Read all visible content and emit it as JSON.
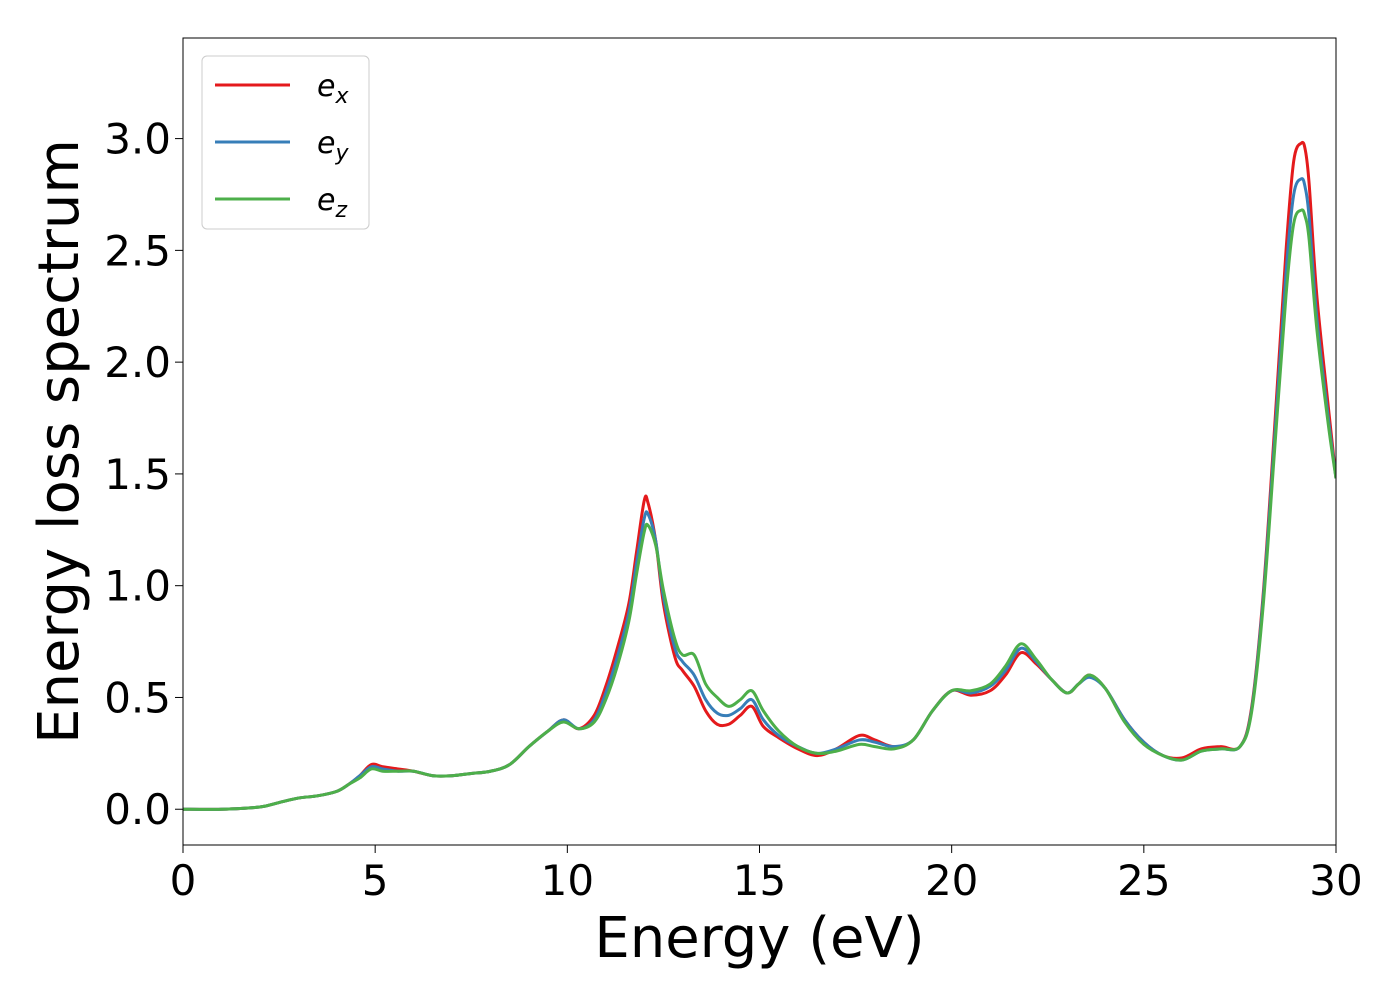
{
  "chart_data": {
    "type": "line",
    "title": "",
    "xlabel": "Energy (eV)",
    "ylabel": "Energy loss spectrum",
    "xlim": [
      0,
      30
    ],
    "ylim": [
      -0.16,
      3.45
    ],
    "xticks": [
      0,
      5,
      10,
      15,
      20,
      25,
      30
    ],
    "xtick_labels": [
      "0",
      "5",
      "10",
      "15",
      "20",
      "25",
      "30"
    ],
    "yticks": [
      0.0,
      0.5,
      1.0,
      1.5,
      2.0,
      2.5,
      3.0
    ],
    "ytick_labels": [
      "0.0",
      "0.5",
      "1.0",
      "1.5",
      "2.0",
      "2.5",
      "3.0"
    ],
    "grid": false,
    "legend_position": "upper-left",
    "series": [
      {
        "name": "e",
        "subscript": "x",
        "color": "#e41a1c",
        "x": [
          0,
          1,
          2,
          2.5,
          3,
          3.5,
          4,
          4.3,
          4.6,
          4.9,
          5.2,
          5.6,
          6.0,
          6.5,
          7,
          7.5,
          8,
          8.5,
          9,
          9.5,
          9.9,
          10.3,
          10.7,
          11,
          11.3,
          11.6,
          11.8,
          12.0,
          12.1,
          12.3,
          12.5,
          12.8,
          13.0,
          13.3,
          13.6,
          13.9,
          14.2,
          14.5,
          14.8,
          15.1,
          15.5,
          16.0,
          16.5,
          17.0,
          17.6,
          18.0,
          18.5,
          19.0,
          19.5,
          20.0,
          20.5,
          21.0,
          21.4,
          21.8,
          22.2,
          22.6,
          23.0,
          23.3,
          23.6,
          24.0,
          24.5,
          25.0,
          25.5,
          26.0,
          26.5,
          27.0,
          27.5,
          27.8,
          28.1,
          28.4,
          28.7,
          28.9,
          29.1,
          29.2,
          29.3,
          29.5,
          29.8,
          30.0
        ],
        "y": [
          0,
          0,
          0.01,
          0.03,
          0.05,
          0.06,
          0.08,
          0.11,
          0.15,
          0.2,
          0.19,
          0.18,
          0.17,
          0.15,
          0.15,
          0.16,
          0.17,
          0.2,
          0.28,
          0.35,
          0.4,
          0.36,
          0.42,
          0.55,
          0.72,
          0.92,
          1.15,
          1.38,
          1.37,
          1.2,
          0.92,
          0.68,
          0.62,
          0.55,
          0.44,
          0.38,
          0.38,
          0.42,
          0.46,
          0.37,
          0.32,
          0.27,
          0.24,
          0.27,
          0.33,
          0.31,
          0.28,
          0.31,
          0.44,
          0.53,
          0.51,
          0.53,
          0.6,
          0.7,
          0.65,
          0.58,
          0.52,
          0.56,
          0.6,
          0.54,
          0.4,
          0.3,
          0.24,
          0.23,
          0.27,
          0.28,
          0.28,
          0.45,
          0.95,
          1.7,
          2.5,
          2.9,
          2.98,
          2.95,
          2.8,
          2.3,
          1.8,
          1.48
        ]
      },
      {
        "name": "e",
        "subscript": "y",
        "color": "#377eb8",
        "x": [
          0,
          1,
          2,
          2.5,
          3,
          3.5,
          4,
          4.3,
          4.6,
          4.9,
          5.2,
          5.6,
          6.0,
          6.5,
          7,
          7.5,
          8,
          8.5,
          9,
          9.5,
          9.9,
          10.3,
          10.7,
          11,
          11.3,
          11.6,
          11.8,
          12.0,
          12.1,
          12.3,
          12.5,
          12.8,
          13.0,
          13.3,
          13.6,
          13.9,
          14.2,
          14.5,
          14.8,
          15.1,
          15.5,
          16.0,
          16.5,
          17.0,
          17.6,
          18.0,
          18.5,
          19.0,
          19.5,
          20.0,
          20.5,
          21.0,
          21.4,
          21.8,
          22.2,
          22.6,
          23.0,
          23.3,
          23.6,
          24.0,
          24.5,
          25.0,
          25.5,
          26.0,
          26.5,
          27.0,
          27.5,
          27.8,
          28.1,
          28.4,
          28.7,
          28.9,
          29.1,
          29.2,
          29.3,
          29.5,
          29.8,
          30.0
        ],
        "y": [
          0,
          0,
          0.01,
          0.03,
          0.05,
          0.06,
          0.08,
          0.11,
          0.15,
          0.19,
          0.18,
          0.17,
          0.17,
          0.15,
          0.15,
          0.16,
          0.17,
          0.2,
          0.28,
          0.35,
          0.4,
          0.36,
          0.4,
          0.52,
          0.68,
          0.88,
          1.1,
          1.3,
          1.32,
          1.2,
          0.95,
          0.72,
          0.66,
          0.6,
          0.49,
          0.43,
          0.42,
          0.45,
          0.49,
          0.4,
          0.33,
          0.28,
          0.25,
          0.27,
          0.31,
          0.3,
          0.28,
          0.31,
          0.44,
          0.53,
          0.52,
          0.55,
          0.62,
          0.72,
          0.66,
          0.58,
          0.52,
          0.56,
          0.59,
          0.54,
          0.4,
          0.3,
          0.24,
          0.22,
          0.26,
          0.27,
          0.28,
          0.44,
          0.93,
          1.65,
          2.4,
          2.75,
          2.82,
          2.78,
          2.65,
          2.2,
          1.75,
          1.48
        ]
      },
      {
        "name": "e",
        "subscript": "z",
        "color": "#4daf4a",
        "x": [
          0,
          1,
          2,
          2.5,
          3,
          3.5,
          4,
          4.3,
          4.6,
          4.9,
          5.2,
          5.6,
          6.0,
          6.5,
          7,
          7.5,
          8,
          8.5,
          9,
          9.5,
          9.9,
          10.3,
          10.7,
          11,
          11.3,
          11.6,
          11.8,
          12.0,
          12.1,
          12.3,
          12.5,
          12.8,
          13.0,
          13.3,
          13.6,
          13.9,
          14.2,
          14.5,
          14.8,
          15.1,
          15.5,
          16.0,
          16.5,
          17.0,
          17.6,
          18.0,
          18.5,
          19.0,
          19.5,
          20.0,
          20.5,
          21.0,
          21.4,
          21.8,
          22.2,
          22.6,
          23.0,
          23.3,
          23.6,
          24.0,
          24.5,
          25.0,
          25.5,
          26.0,
          26.5,
          27.0,
          27.5,
          27.8,
          28.1,
          28.4,
          28.7,
          28.9,
          29.1,
          29.2,
          29.3,
          29.5,
          29.8,
          30.0
        ],
        "y": [
          0,
          0,
          0.01,
          0.03,
          0.05,
          0.06,
          0.08,
          0.11,
          0.14,
          0.18,
          0.17,
          0.17,
          0.17,
          0.15,
          0.15,
          0.16,
          0.17,
          0.2,
          0.28,
          0.35,
          0.39,
          0.36,
          0.39,
          0.49,
          0.64,
          0.84,
          1.05,
          1.24,
          1.27,
          1.18,
          0.98,
          0.76,
          0.69,
          0.69,
          0.56,
          0.5,
          0.46,
          0.49,
          0.53,
          0.44,
          0.35,
          0.28,
          0.25,
          0.26,
          0.29,
          0.28,
          0.27,
          0.31,
          0.44,
          0.53,
          0.53,
          0.56,
          0.64,
          0.74,
          0.67,
          0.58,
          0.52,
          0.56,
          0.6,
          0.54,
          0.39,
          0.29,
          0.24,
          0.22,
          0.26,
          0.27,
          0.28,
          0.43,
          0.9,
          1.6,
          2.3,
          2.62,
          2.68,
          2.65,
          2.55,
          2.15,
          1.72,
          1.48
        ]
      }
    ]
  }
}
